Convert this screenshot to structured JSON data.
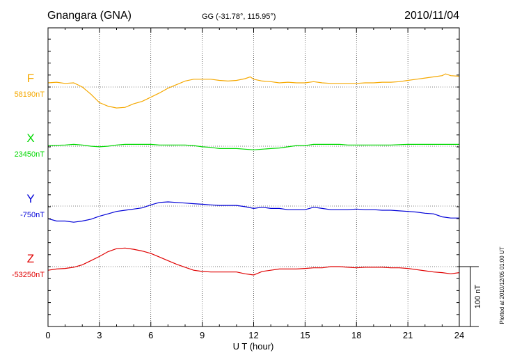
{
  "header": {
    "station": "Gnangara (GNA)",
    "coords": "GG (-31.78°, 115.95°)",
    "date": "2010/11/04"
  },
  "footer_note": "Plotted at 2010/12/05 01:00 UT",
  "scale_bar": {
    "label": "100 nT",
    "value_nT": 100
  },
  "colors": {
    "F": "#f5a800",
    "X": "#00d800",
    "Y": "#0000d8",
    "Z": "#e00000",
    "axis": "#000000",
    "grid": "#000000"
  },
  "chart_data": {
    "type": "line",
    "title": "",
    "xlabel": "U T (hour)",
    "ylabel": "",
    "x_ticks": [
      "0",
      "3",
      "6",
      "9",
      "12",
      "15",
      "18",
      "21",
      "24"
    ],
    "xlim": [
      0,
      24
    ],
    "grid": true,
    "series": [
      {
        "name": "F",
        "baseline_label": "58190nT",
        "baseline": 58190,
        "points": [
          [
            0,
            58197
          ],
          [
            0.5,
            58198
          ],
          [
            1,
            58196
          ],
          [
            1.5,
            58197
          ],
          [
            2,
            58190
          ],
          [
            2.5,
            58178
          ],
          [
            3,
            58164
          ],
          [
            3.5,
            58158
          ],
          [
            4,
            58155
          ],
          [
            4.5,
            58156
          ],
          [
            5,
            58162
          ],
          [
            5.5,
            58166
          ],
          [
            6,
            58173
          ],
          [
            6.5,
            58180
          ],
          [
            7,
            58188
          ],
          [
            7.5,
            58194
          ],
          [
            8,
            58200
          ],
          [
            8.5,
            58203
          ],
          [
            9,
            58203
          ],
          [
            9.5,
            58203
          ],
          [
            10,
            58201
          ],
          [
            10.5,
            58200
          ],
          [
            11,
            58201
          ],
          [
            11.5,
            58204
          ],
          [
            11.8,
            58207
          ],
          [
            12,
            58203
          ],
          [
            12.5,
            58200
          ],
          [
            13,
            58199
          ],
          [
            13.5,
            58197
          ],
          [
            14,
            58198
          ],
          [
            14.5,
            58197
          ],
          [
            15,
            58197
          ],
          [
            15.5,
            58199
          ],
          [
            16,
            58197
          ],
          [
            16.5,
            58196
          ],
          [
            17,
            58196
          ],
          [
            17.5,
            58196
          ],
          [
            18,
            58196
          ],
          [
            18.5,
            58197
          ],
          [
            19,
            58197
          ],
          [
            19.5,
            58198
          ],
          [
            20,
            58198
          ],
          [
            20.5,
            58199
          ],
          [
            21,
            58201
          ],
          [
            21.5,
            58203
          ],
          [
            22,
            58205
          ],
          [
            22.5,
            58207
          ],
          [
            23,
            58209
          ],
          [
            23.2,
            58212
          ],
          [
            23.5,
            58209
          ],
          [
            24,
            58208
          ]
        ]
      },
      {
        "name": "X",
        "baseline_label": "23450nT",
        "baseline": 23450,
        "points": [
          [
            0,
            23451
          ],
          [
            1,
            23452
          ],
          [
            1.5,
            23453
          ],
          [
            2,
            23452
          ],
          [
            2.5,
            23450
          ],
          [
            3,
            23449
          ],
          [
            3.5,
            23450
          ],
          [
            4,
            23452
          ],
          [
            4.5,
            23453
          ],
          [
            5,
            23453
          ],
          [
            5.5,
            23453
          ],
          [
            6,
            23453
          ],
          [
            6.5,
            23452
          ],
          [
            7,
            23452
          ],
          [
            7.5,
            23452
          ],
          [
            8,
            23452
          ],
          [
            8.5,
            23451
          ],
          [
            9,
            23449
          ],
          [
            9.5,
            23448
          ],
          [
            10,
            23446
          ],
          [
            10.5,
            23446
          ],
          [
            11,
            23446
          ],
          [
            11.5,
            23445
          ],
          [
            12,
            23444
          ],
          [
            12.5,
            23445
          ],
          [
            13,
            23446
          ],
          [
            13.5,
            23447
          ],
          [
            14,
            23449
          ],
          [
            14.5,
            23451
          ],
          [
            15,
            23451
          ],
          [
            15.5,
            23453
          ],
          [
            16,
            23453
          ],
          [
            16.5,
            23453
          ],
          [
            17,
            23453
          ],
          [
            17.5,
            23452
          ],
          [
            18,
            23452
          ],
          [
            19,
            23452
          ],
          [
            20,
            23452
          ],
          [
            21,
            23453
          ],
          [
            22,
            23453
          ],
          [
            23,
            23453
          ],
          [
            24,
            23453
          ]
        ]
      },
      {
        "name": "Y",
        "baseline_label": "-750nT",
        "baseline": -750,
        "points": [
          [
            0,
            -771
          ],
          [
            0.5,
            -775
          ],
          [
            1,
            -775
          ],
          [
            1.5,
            -777
          ],
          [
            2,
            -775
          ],
          [
            2.5,
            -772
          ],
          [
            3,
            -767
          ],
          [
            3.5,
            -763
          ],
          [
            4,
            -759
          ],
          [
            4.5,
            -757
          ],
          [
            5,
            -755
          ],
          [
            5.5,
            -753
          ],
          [
            6,
            -748
          ],
          [
            6.5,
            -744
          ],
          [
            7,
            -743
          ],
          [
            7.5,
            -744
          ],
          [
            8,
            -745
          ],
          [
            8.5,
            -746
          ],
          [
            9,
            -747
          ],
          [
            9.5,
            -748
          ],
          [
            10,
            -749
          ],
          [
            10.5,
            -749
          ],
          [
            11,
            -749
          ],
          [
            11.5,
            -751
          ],
          [
            12,
            -754
          ],
          [
            12.5,
            -752
          ],
          [
            13,
            -754
          ],
          [
            13.5,
            -754
          ],
          [
            14,
            -756
          ],
          [
            14.5,
            -756
          ],
          [
            15,
            -756
          ],
          [
            15.5,
            -752
          ],
          [
            16,
            -754
          ],
          [
            16.5,
            -756
          ],
          [
            17,
            -756
          ],
          [
            17.5,
            -756
          ],
          [
            18,
            -755
          ],
          [
            18.5,
            -756
          ],
          [
            19,
            -756
          ],
          [
            19.5,
            -757
          ],
          [
            20,
            -757
          ],
          [
            20.5,
            -758
          ],
          [
            21,
            -759
          ],
          [
            21.5,
            -760
          ],
          [
            22,
            -762
          ],
          [
            22.5,
            -763
          ],
          [
            23,
            -768
          ],
          [
            23.5,
            -770
          ],
          [
            24,
            -770
          ]
        ]
      },
      {
        "name": "Z",
        "baseline_label": "-53250nT",
        "baseline": -53250,
        "points": [
          [
            0,
            -53256
          ],
          [
            0.5,
            -53254
          ],
          [
            1,
            -53253
          ],
          [
            1.5,
            -53251
          ],
          [
            2,
            -53247
          ],
          [
            2.5,
            -53240
          ],
          [
            3,
            -53233
          ],
          [
            3.5,
            -53225
          ],
          [
            4,
            -53220
          ],
          [
            4.5,
            -53219
          ],
          [
            5,
            -53221
          ],
          [
            5.5,
            -53224
          ],
          [
            6,
            -53228
          ],
          [
            6.5,
            -53234
          ],
          [
            7,
            -53240
          ],
          [
            7.5,
            -53246
          ],
          [
            8,
            -53251
          ],
          [
            8.5,
            -53256
          ],
          [
            9,
            -53258
          ],
          [
            9.5,
            -53259
          ],
          [
            10,
            -53259
          ],
          [
            10.5,
            -53259
          ],
          [
            11,
            -53259
          ],
          [
            11.5,
            -53262
          ],
          [
            12,
            -53264
          ],
          [
            12.5,
            -53258
          ],
          [
            13,
            -53256
          ],
          [
            13.5,
            -53254
          ],
          [
            14,
            -53254
          ],
          [
            14.5,
            -53254
          ],
          [
            15,
            -53253
          ],
          [
            15.5,
            -53252
          ],
          [
            16,
            -53252
          ],
          [
            16.5,
            -53250
          ],
          [
            17,
            -53250
          ],
          [
            17.5,
            -53251
          ],
          [
            18,
            -53252
          ],
          [
            18.5,
            -53251
          ],
          [
            19,
            -53251
          ],
          [
            19.5,
            -53251
          ],
          [
            20,
            -53252
          ],
          [
            20.5,
            -53252
          ],
          [
            21,
            -53253
          ],
          [
            21.5,
            -53255
          ],
          [
            22,
            -53257
          ],
          [
            22.5,
            -53259
          ],
          [
            23,
            -53260
          ],
          [
            23.5,
            -53262
          ],
          [
            24,
            -53260
          ]
        ]
      }
    ]
  }
}
